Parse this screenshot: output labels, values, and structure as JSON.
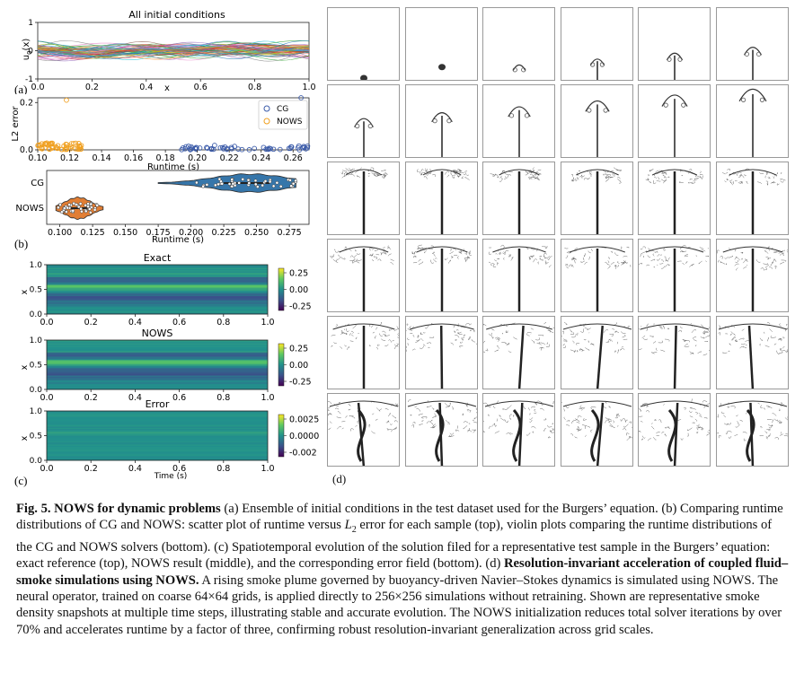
{
  "figure": {
    "panel_labels": {
      "a": "(a)",
      "b": "(b)",
      "c": "(c)",
      "d": "(d)"
    },
    "caption": {
      "fig_label": "Fig. 5.",
      "title": "NOWS for dynamic problems",
      "part1": "(a) Ensemble of initial conditions in the test dataset used for the Burgers’ equation. (b) Comparing runtime distributions of CG and NOWS: scatter plot of runtime versus ",
      "l2_symbol": "L",
      "l2_sub": "2",
      "part2": " error for each sample (top), violin plots comparing the runtime distributions of the CG and NOWS solvers (bottom). (c) Spatiotemporal evolution of the solution filed for a representative test sample in the Burgers’ equation: exact reference (top), NOWS result (middle), and the corresponding error field (bottom). (d) ",
      "bold2": "Resolution-invariant acceleration of coupled fluid–smoke simulations using NOWS.",
      "part3": " A rising smoke plume governed by buoyancy-driven Navier–Stokes dynamics is simulated using NOWS. The neural operator, trained on coarse 64×64 grids, is applied directly to 256×256 simulations without retraining. Shown are representative smoke density snapshots at multiple time steps, illustrating stable and accurate evolution. The NOWS initialization reduces total solver iterations by over 70% and accelerates runtime by a factor of three, confirming robust resolution-invariant generalization across grid scales."
    },
    "colors": {
      "cg": "#3b5ba9",
      "nows": "#f0a020",
      "violin_cg": "#2c6fa6",
      "violin_nows": "#e0782a"
    },
    "smoke_grid": {
      "rows": 6,
      "cols": 6
    }
  },
  "chart_data": [
    {
      "id": "initial-conditions",
      "type": "line",
      "title": "All initial conditions",
      "xlabel": "x",
      "ylabel": "u0(x)",
      "ylabel_main": "u",
      "ylabel_sub": "0",
      "ylabel_rest": "(x)",
      "xlim": [
        0,
        1
      ],
      "ylim": [
        -1,
        1
      ],
      "xticks": [
        "0.0",
        "0.2",
        "0.4",
        "0.6",
        "0.8",
        "1.0"
      ],
      "yticks": [
        "-1",
        "0",
        "1"
      ],
      "series_count": 60,
      "amplitude_range": [
        -0.5,
        0.5
      ]
    },
    {
      "id": "runtime-vs-error",
      "type": "scatter",
      "xlabel": "Runtime (s)",
      "ylabel": "L2 error",
      "xlim": [
        0.1,
        0.27
      ],
      "ylim": [
        0,
        0.22
      ],
      "xticks": [
        "0.10",
        "0.12",
        "0.14",
        "0.16",
        "0.18",
        "0.20",
        "0.22",
        "0.24",
        "0.26"
      ],
      "yticks": [
        "0.0",
        "0.2"
      ],
      "legend": {
        "position": "top-right",
        "entries": [
          "CG",
          "NOWS"
        ]
      },
      "series": [
        {
          "name": "CG",
          "runtime_range": [
            0.19,
            0.27
          ],
          "error_range": [
            0.0,
            0.02
          ],
          "count": 55,
          "outlier": [
            0.265,
            0.22
          ]
        },
        {
          "name": "NOWS",
          "runtime_range": [
            0.1,
            0.128
          ],
          "error_range": [
            0.0,
            0.03
          ],
          "count": 55,
          "outlier": [
            0.118,
            0.21
          ]
        }
      ]
    },
    {
      "id": "runtime-violin",
      "type": "violin",
      "xlabel": "Runtime (s)",
      "categories": [
        "CG",
        "NOWS"
      ],
      "xlim": [
        0.09,
        0.29
      ],
      "xticks": [
        "0.100",
        "0.125",
        "0.150",
        "0.175",
        "0.200",
        "0.225",
        "0.250",
        "0.275"
      ],
      "distributions": [
        {
          "name": "CG",
          "min": 0.175,
          "max": 0.28,
          "median": 0.245,
          "q1": 0.225,
          "q3": 0.26
        },
        {
          "name": "NOWS",
          "min": 0.097,
          "max": 0.133,
          "median": 0.114,
          "q1": 0.107,
          "q3": 0.121
        }
      ]
    },
    {
      "id": "spatiotemporal",
      "type": "heatmap",
      "xlabel": "Time (s)",
      "ylabel": "x",
      "xticks": [
        "0.0",
        "0.2",
        "0.4",
        "0.6",
        "0.8",
        "1.0"
      ],
      "yticks": [
        "0.0",
        "0.5",
        "1.0"
      ],
      "panels": [
        {
          "title": "Exact",
          "colorbar_ticks": [
            "0.25",
            "0.00",
            "-0.25"
          ],
          "range": [
            -0.35,
            0.35
          ]
        },
        {
          "title": "NOWS",
          "colorbar_ticks": [
            "0.25",
            "0.00",
            "-0.25"
          ],
          "range": [
            -0.35,
            0.35
          ]
        },
        {
          "title": "Error",
          "colorbar_ticks": [
            "0.0025",
            "0.0000",
            "-0.002"
          ],
          "range": [
            -0.003,
            0.003
          ]
        }
      ]
    }
  ]
}
